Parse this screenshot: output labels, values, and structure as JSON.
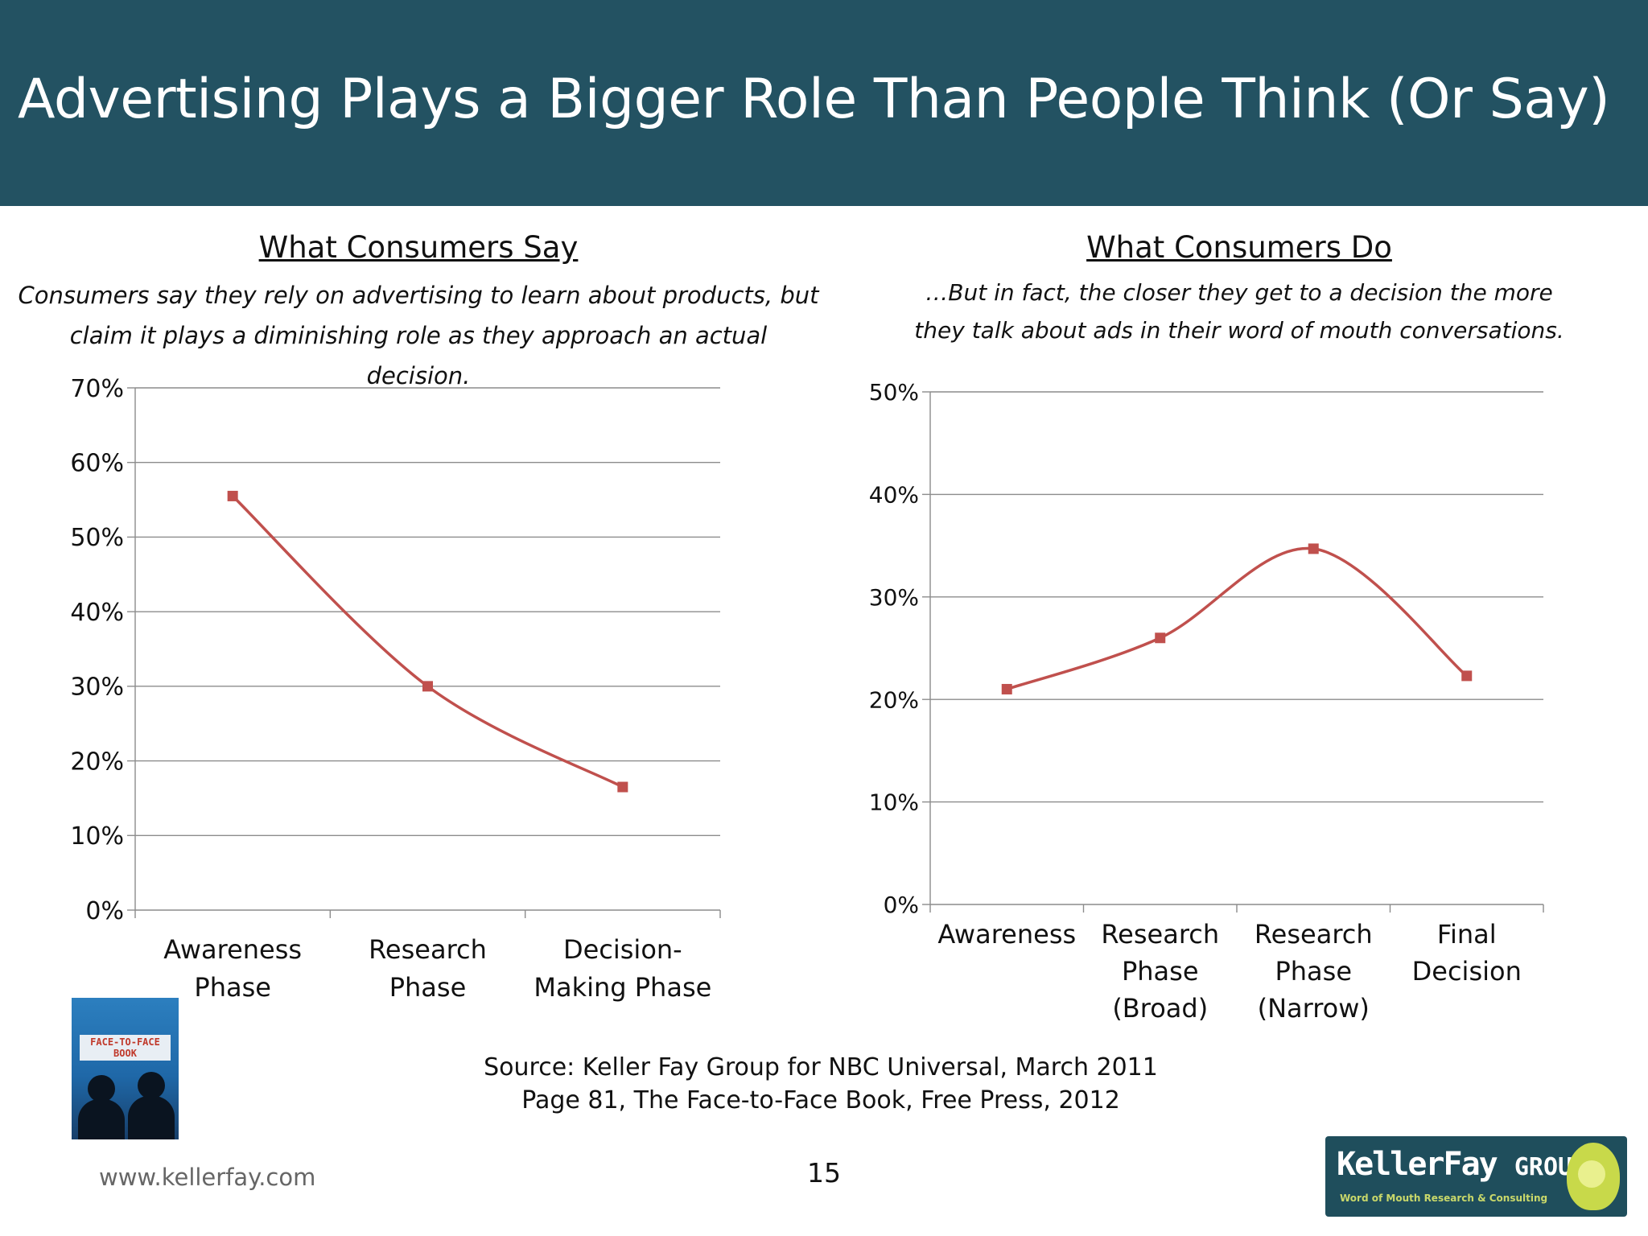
{
  "header": {
    "title": "Advertising Plays a Bigger Role Than People Think (Or Say)"
  },
  "left_panel": {
    "title": "What Consumers Say",
    "subtitle": "Consumers say they rely on advertising to learn about products, but claim it plays a diminishing role as they approach an actual decision."
  },
  "right_panel": {
    "title": "What Consumers Do",
    "subtitle": "…But in fact, the closer they get to a decision the more they talk about ads in their word of mouth conversations."
  },
  "chart_data": [
    {
      "type": "line",
      "smooth": true,
      "categories": [
        [
          "Awareness",
          "Phase"
        ],
        [
          "Research",
          "Phase"
        ],
        [
          "Decision-",
          "Making Phase"
        ]
      ],
      "values": [
        55.5,
        30,
        16.5
      ],
      "ylim": [
        0,
        70
      ],
      "yticks": [
        0,
        10,
        20,
        30,
        40,
        50,
        60,
        70
      ],
      "ytick_labels": [
        "0%",
        "10%",
        "20%",
        "30%",
        "40%",
        "50%",
        "60%",
        "70%"
      ],
      "grid": true,
      "legend": "none",
      "color": "#c0504d"
    },
    {
      "type": "line",
      "smooth": true,
      "categories": [
        [
          "Awareness"
        ],
        [
          "Research",
          "Phase",
          "(Broad)"
        ],
        [
          "Research",
          "Phase",
          "(Narrow)"
        ],
        [
          "Final",
          "Decision"
        ]
      ],
      "values": [
        21,
        26,
        34.7,
        22.3
      ],
      "ylim": [
        0,
        50
      ],
      "yticks": [
        0,
        10,
        20,
        30,
        40,
        50
      ],
      "ytick_labels": [
        "0%",
        "10%",
        "20%",
        "30%",
        "40%",
        "50%"
      ],
      "grid": true,
      "legend": "none",
      "color": "#c0504d"
    }
  ],
  "source": {
    "line1": "Source: Keller Fay Group for NBC Universal, March 2011",
    "line2": "Page 81, The Face-to-Face Book, Free Press, 2012"
  },
  "footer": {
    "website": "www.kellerfay.com",
    "page_number": "15"
  },
  "book_cover": {
    "label_line1": "FACE-TO-FACE",
    "label_line2": "BOOK"
  },
  "logo": {
    "name": "KellerFay",
    "group": "GROUP",
    "tagline": "Word of Mouth Research & Consulting"
  }
}
